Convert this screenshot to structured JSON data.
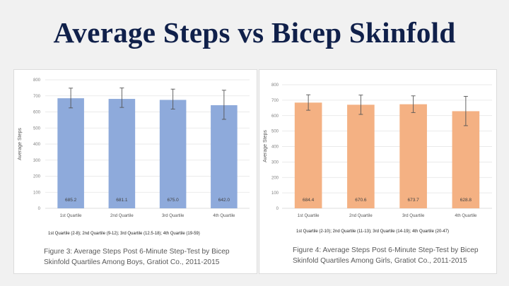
{
  "slide": {
    "title": "Average Steps vs Bicep Skinfold"
  },
  "chart_data": [
    {
      "id": "boys",
      "type": "bar",
      "categories": [
        "1st Quartile",
        "2nd Quartile",
        "3rd Quartile",
        "4th Quartile"
      ],
      "values": [
        685.2,
        681.1,
        675.0,
        642.0
      ],
      "value_labels": [
        "685.2",
        "681.1",
        "675.0",
        "642.0"
      ],
      "error_bars": [
        {
          "low": 625,
          "high": 748
        },
        {
          "low": 628,
          "high": 749
        },
        {
          "low": 618,
          "high": 742
        },
        {
          "low": 554,
          "high": 735
        }
      ],
      "ylabel": "Average Steps",
      "ylim": [
        0,
        800
      ],
      "yticks": [
        0,
        100,
        200,
        300,
        400,
        500,
        600,
        700,
        800
      ],
      "grid": true,
      "bar_color": "#8eaadb",
      "footnote": "1st Quartile (2-8); 2nd Quartile (9-12); 3rd Quartile (12.5-18); 4th Quartile (19-59)",
      "caption_line1": "Figure 3: Average Steps Post 6-Minute Step-Test by Bicep",
      "caption_line2": "Skinfold Quartiles Among Boys, Gratiot Co., 2011-2015"
    },
    {
      "id": "girls",
      "type": "bar",
      "categories": [
        "1st Quartile",
        "2nd Quartile",
        "3rd Quartile",
        "4th Quartile"
      ],
      "values": [
        684.4,
        670.6,
        673.7,
        628.8
      ],
      "value_labels": [
        "684.4",
        "670.6",
        "673.7",
        "628.8"
      ],
      "error_bars": [
        {
          "low": 635,
          "high": 735
        },
        {
          "low": 608,
          "high": 733
        },
        {
          "low": 620,
          "high": 728
        },
        {
          "low": 535,
          "high": 725
        }
      ],
      "ylabel": "Average Steps",
      "ylim": [
        0,
        800
      ],
      "yticks": [
        0,
        100,
        200,
        300,
        400,
        500,
        600,
        700,
        800
      ],
      "grid": true,
      "bar_color": "#f4b183",
      "footnote": "1st Quartile (2-10); 2nd Quartile (11-13); 3rd Quartile (14-19); 4th Quartile (20-47)",
      "caption_line1": "Figure 4: Average Steps Post 6-Minute Step-Test by Bicep",
      "caption_line2": "Skinfold Quartiles Among Girls, Gratiot Co., 2011-2015"
    }
  ]
}
